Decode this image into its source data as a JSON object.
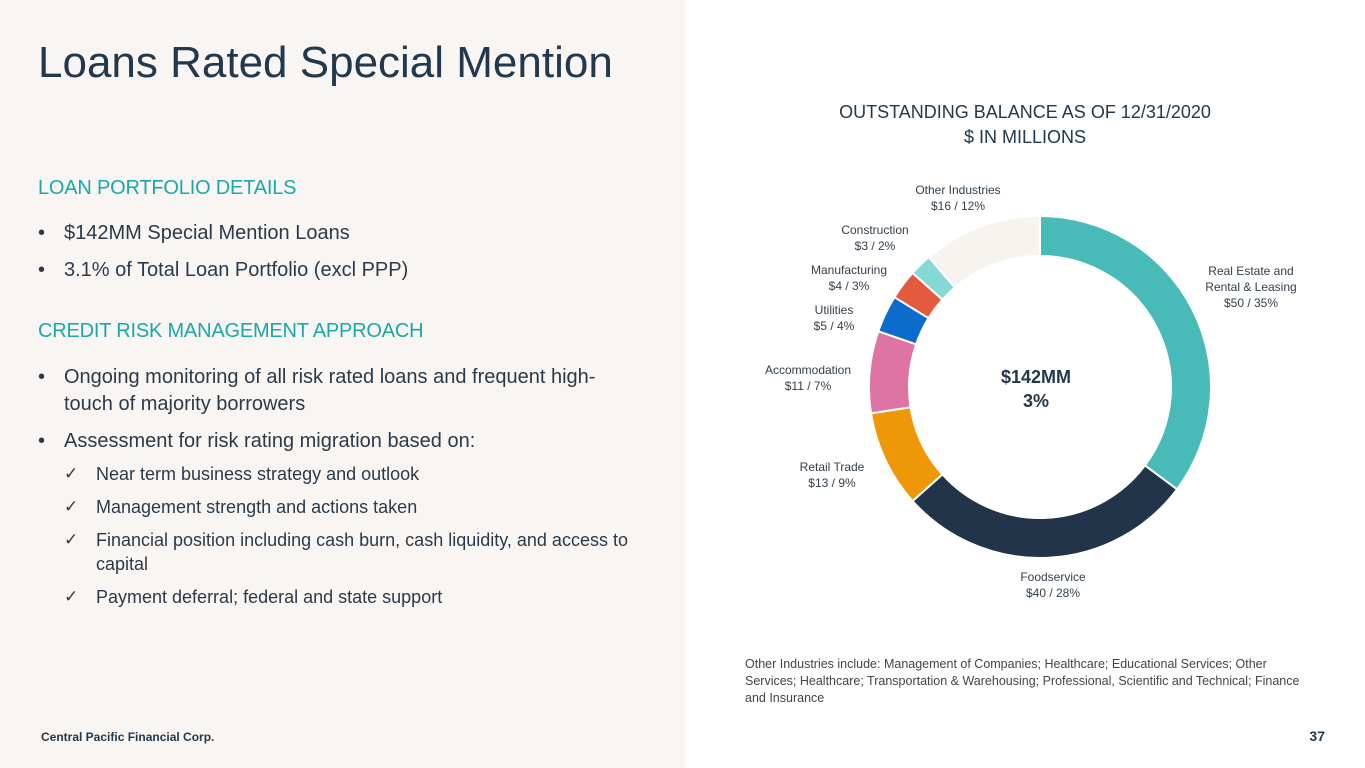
{
  "title": "Loans Rated Special Mention",
  "portfolio": {
    "heading": "LOAN PORTFOLIO DETAILS",
    "bullets": [
      "$142MM Special Mention Loans",
      "3.1% of Total Loan Portfolio (excl PPP)"
    ]
  },
  "credit": {
    "heading": "CREDIT RISK MANAGEMENT APPROACH",
    "bullets": [
      "Ongoing monitoring of all risk rated loans and frequent high-touch of majority borrowers",
      "Assessment for risk rating migration based on:"
    ],
    "checks": [
      "Near term business strategy and outlook",
      "Management strength and actions taken",
      "Financial position including cash burn, cash liquidity, and access to capital",
      "Payment deferral; federal and state support"
    ],
    "check_glyph": "✓"
  },
  "chart_data": {
    "type": "pie",
    "title": "OUTSTANDING BALANCE AS OF 12/31/2020",
    "subtitle": "$ IN MILLIONS",
    "center_label": [
      "$142MM",
      "3%"
    ],
    "slices": [
      {
        "name": "Real Estate and Rental & Leasing",
        "label_lines": [
          "Real Estate and",
          "Rental & Leasing",
          "$50 / 35%"
        ],
        "value": 50,
        "percent": 35,
        "color": "#48bab7"
      },
      {
        "name": "Foodservice",
        "label_lines": [
          "Foodservice",
          "$40 / 28%"
        ],
        "value": 40,
        "percent": 28,
        "color": "#22344a"
      },
      {
        "name": "Retail Trade",
        "label_lines": [
          "Retail Trade",
          "$13 / 9%"
        ],
        "value": 13,
        "percent": 9,
        "color": "#ee9807"
      },
      {
        "name": "Accommodation",
        "label_lines": [
          "Accommodation",
          "$11 / 7%"
        ],
        "value": 11,
        "percent": 7,
        "color": "#de74a3"
      },
      {
        "name": "Utilities",
        "label_lines": [
          "Utilities",
          "$5 / 4%"
        ],
        "value": 5,
        "percent": 4,
        "color": "#0b6ccb"
      },
      {
        "name": "Manufacturing",
        "label_lines": [
          "Manufacturing",
          "$4 / 3%"
        ],
        "value": 4,
        "percent": 3,
        "color": "#e45a3f"
      },
      {
        "name": "Construction",
        "label_lines": [
          "Construction",
          "$3 / 2%"
        ],
        "value": 3,
        "percent": 2,
        "color": "#85d8d6"
      },
      {
        "name": "Other Industries",
        "label_lines": [
          "Other Industries",
          "$16 / 12%"
        ],
        "value": 16,
        "percent": 12,
        "color": "#f7f3ef"
      }
    ]
  },
  "footnote": "Other Industries include: Management of Companies; Healthcare; Educational Services; Other Services; Healthcare; Transportation & Warehousing; Professional, Scientific and Technical; Finance and Insurance",
  "footer": {
    "company": "Central Pacific Financial Corp.",
    "page": "37"
  }
}
